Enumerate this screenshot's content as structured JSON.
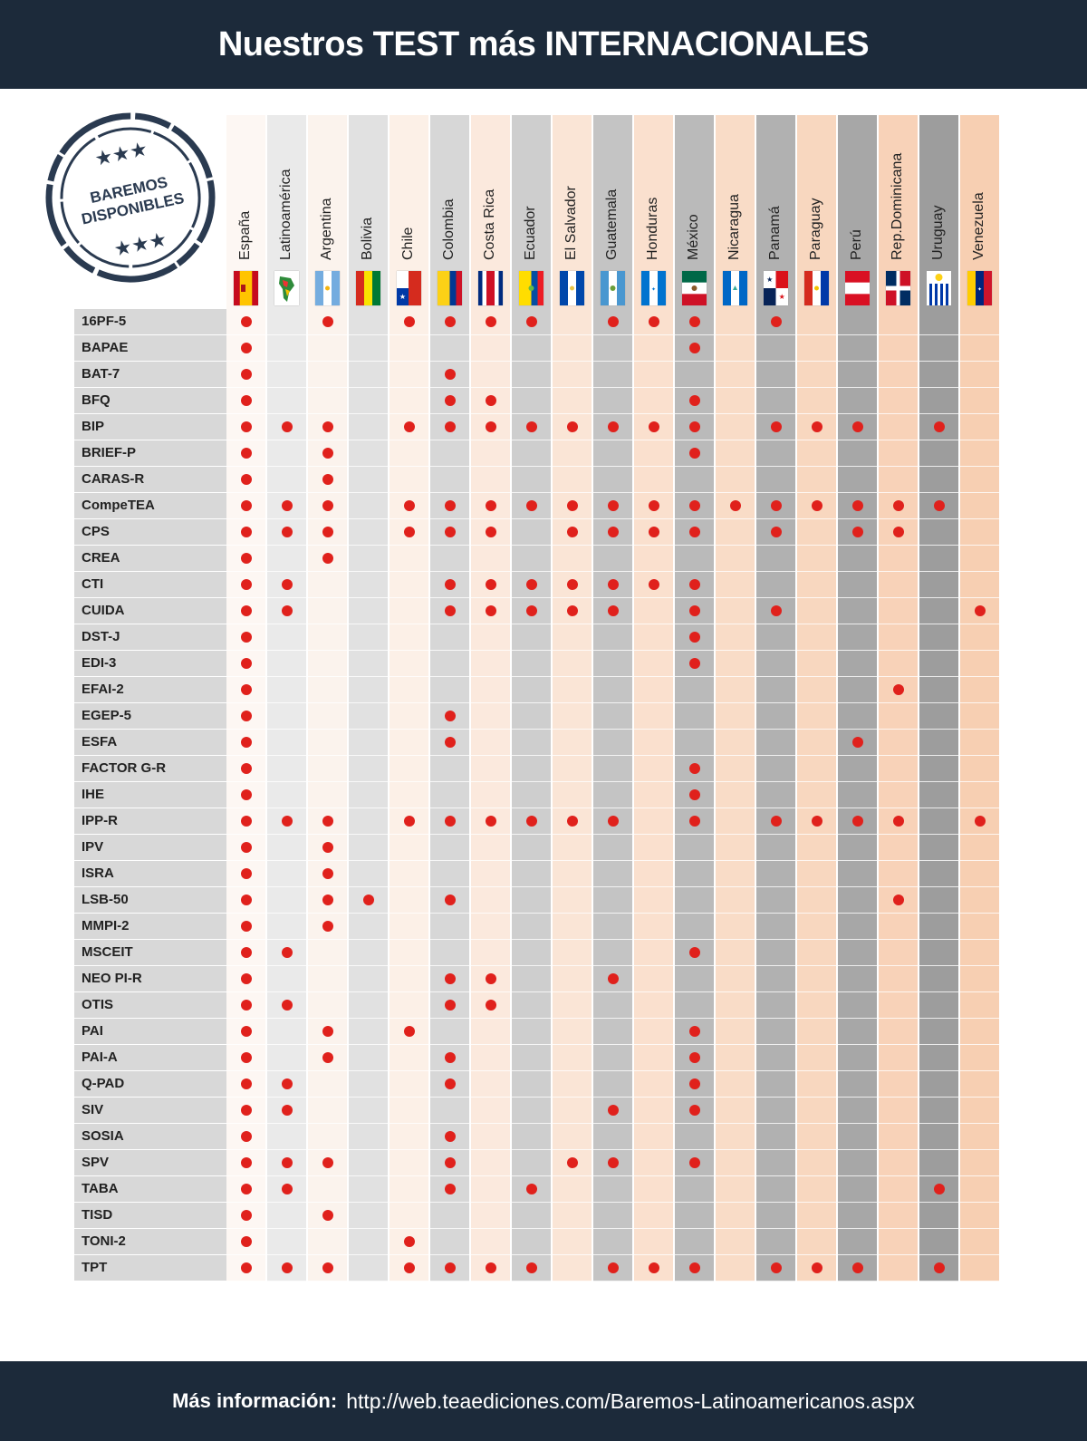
{
  "header": {
    "title": "Nuestros TEST más INTERNACIONALES"
  },
  "stamp": {
    "line1": "BAREMOS",
    "line2": "DISPONIBLES"
  },
  "countries": [
    "España",
    "Latinoamérica",
    "Argentina",
    "Bolivia",
    "Chile",
    "Colombia",
    "Costa Rica",
    "Ecuador",
    "El Salvador",
    "Guatemala",
    "Honduras",
    "México",
    "Nicaragua",
    "Panamá",
    "Paraguay",
    "Perú",
    "Rep.Dominicana",
    "Uruguay",
    "Venezuela"
  ],
  "flag_icons": [
    "spain-flag-icon",
    "latin-america-map-icon",
    "argentina-flag-icon",
    "bolivia-flag-icon",
    "chile-flag-icon",
    "colombia-flag-icon",
    "costa-rica-flag-icon",
    "ecuador-flag-icon",
    "el-salvador-flag-icon",
    "guatemala-flag-icon",
    "honduras-flag-icon",
    "mexico-flag-icon",
    "nicaragua-flag-icon",
    "panama-flag-icon",
    "paraguay-flag-icon",
    "peru-flag-icon",
    "dominican-republic-flag-icon",
    "uruguay-flag-icon",
    "venezuela-flag-icon"
  ],
  "colors": {
    "header_bg": "#1c2a3a",
    "dot": "#e0211c",
    "label_bg": "#d8d8d8",
    "column_palette": [
      "#fdf7f3",
      "#eaeaea",
      "#fbf3ed",
      "#e1e1e1",
      "#fcf0e7",
      "#d7d7d7",
      "#fbe9dd",
      "#cecece",
      "#fae5d6",
      "#c4c4c4",
      "#fae0ce",
      "#bababa",
      "#f9dcc7",
      "#b1b1b1",
      "#f8d7bf",
      "#a7a7a7",
      "#f8d2b8",
      "#9d9d9d",
      "#f7cfb2"
    ]
  },
  "tests": [
    {
      "name": "16PF-5",
      "countries": [
        "España",
        "Argentina",
        "Chile",
        "Colombia",
        "Costa Rica",
        "Ecuador",
        "Guatemala",
        "Honduras",
        "México",
        "Panamá"
      ]
    },
    {
      "name": "BAPAE",
      "countries": [
        "España",
        "México"
      ]
    },
    {
      "name": "BAT-7",
      "countries": [
        "España",
        "Colombia"
      ]
    },
    {
      "name": "BFQ",
      "countries": [
        "España",
        "Colombia",
        "Costa Rica",
        "México"
      ]
    },
    {
      "name": "BIP",
      "countries": [
        "España",
        "Latinoamérica",
        "Argentina",
        "Chile",
        "Colombia",
        "Costa Rica",
        "Ecuador",
        "El Salvador",
        "Guatemala",
        "Honduras",
        "México",
        "Panamá",
        "Paraguay",
        "Perú",
        "Uruguay"
      ]
    },
    {
      "name": "BRIEF-P",
      "countries": [
        "España",
        "Argentina",
        "México"
      ]
    },
    {
      "name": "CARAS-R",
      "countries": [
        "España",
        "Argentina"
      ]
    },
    {
      "name": "CompeTEA",
      "countries": [
        "España",
        "Latinoamérica",
        "Argentina",
        "Chile",
        "Colombia",
        "Costa Rica",
        "Ecuador",
        "El Salvador",
        "Guatemala",
        "Honduras",
        "México",
        "Nicaragua",
        "Panamá",
        "Paraguay",
        "Perú",
        "Rep.Dominicana",
        "Uruguay"
      ]
    },
    {
      "name": "CPS",
      "countries": [
        "España",
        "Latinoamérica",
        "Argentina",
        "Chile",
        "Colombia",
        "Costa Rica",
        "El Salvador",
        "Guatemala",
        "Honduras",
        "México",
        "Panamá",
        "Perú",
        "Rep.Dominicana"
      ]
    },
    {
      "name": "CREA",
      "countries": [
        "España",
        "Argentina"
      ]
    },
    {
      "name": "CTI",
      "countries": [
        "España",
        "Latinoamérica",
        "Colombia",
        "Costa Rica",
        "Ecuador",
        "El Salvador",
        "Guatemala",
        "Honduras",
        "México"
      ]
    },
    {
      "name": "CUIDA",
      "countries": [
        "España",
        "Latinoamérica",
        "Colombia",
        "Costa Rica",
        "Ecuador",
        "El Salvador",
        "Guatemala",
        "México",
        "Panamá",
        "Venezuela"
      ]
    },
    {
      "name": "DST-J",
      "countries": [
        "España",
        "México"
      ]
    },
    {
      "name": "EDI-3",
      "countries": [
        "España",
        "México"
      ]
    },
    {
      "name": "EFAI-2",
      "countries": [
        "España",
        "Rep.Dominicana"
      ]
    },
    {
      "name": "EGEP-5",
      "countries": [
        "España",
        "Colombia"
      ]
    },
    {
      "name": "ESFA",
      "countries": [
        "España",
        "Colombia",
        "Perú"
      ]
    },
    {
      "name": "FACTOR G-R",
      "countries": [
        "España",
        "México"
      ]
    },
    {
      "name": "IHE",
      "countries": [
        "España",
        "México"
      ]
    },
    {
      "name": "IPP-R",
      "countries": [
        "España",
        "Latinoamérica",
        "Argentina",
        "Chile",
        "Colombia",
        "Costa Rica",
        "Ecuador",
        "El Salvador",
        "Guatemala",
        "México",
        "Panamá",
        "Paraguay",
        "Perú",
        "Rep.Dominicana",
        "Venezuela"
      ]
    },
    {
      "name": "IPV",
      "countries": [
        "España",
        "Argentina"
      ]
    },
    {
      "name": "ISRA",
      "countries": [
        "España",
        "Argentina"
      ]
    },
    {
      "name": "LSB-50",
      "countries": [
        "España",
        "Argentina",
        "Bolivia",
        "Colombia",
        "Rep.Dominicana"
      ]
    },
    {
      "name": "MMPI-2",
      "countries": [
        "España",
        "Argentina"
      ]
    },
    {
      "name": "MSCEIT",
      "countries": [
        "España",
        "Latinoamérica",
        "México"
      ]
    },
    {
      "name": "NEO PI-R",
      "countries": [
        "España",
        "Colombia",
        "Costa Rica",
        "Guatemala"
      ]
    },
    {
      "name": "OTIS",
      "countries": [
        "España",
        "Latinoamérica",
        "Colombia",
        "Costa Rica"
      ]
    },
    {
      "name": "PAI",
      "countries": [
        "España",
        "Argentina",
        "Chile",
        "México"
      ]
    },
    {
      "name": "PAI-A",
      "countries": [
        "España",
        "Argentina",
        "Colombia",
        "México"
      ]
    },
    {
      "name": "Q-PAD",
      "countries": [
        "España",
        "Latinoamérica",
        "Colombia",
        "México"
      ]
    },
    {
      "name": "SIV",
      "countries": [
        "España",
        "Latinoamérica",
        "Guatemala",
        "México"
      ]
    },
    {
      "name": "SOSIA",
      "countries": [
        "España",
        "Colombia"
      ]
    },
    {
      "name": "SPV",
      "countries": [
        "España",
        "Latinoamérica",
        "Argentina",
        "Colombia",
        "El Salvador",
        "Guatemala",
        "México"
      ]
    },
    {
      "name": "TABA",
      "countries": [
        "España",
        "Latinoamérica",
        "Colombia",
        "Ecuador",
        "Uruguay"
      ]
    },
    {
      "name": "TISD",
      "countries": [
        "España",
        "Argentina"
      ]
    },
    {
      "name": "TONI-2",
      "countries": [
        "España",
        "Chile"
      ]
    },
    {
      "name": "TPT",
      "countries": [
        "España",
        "Latinoamérica",
        "Argentina",
        "Chile",
        "Colombia",
        "Costa Rica",
        "Ecuador",
        "Guatemala",
        "Honduras",
        "México",
        "Panamá",
        "Paraguay",
        "Perú",
        "Uruguay"
      ]
    }
  ],
  "footer": {
    "label": "Más información:",
    "url": "http://web.teaediciones.com/Baremos-Latinoamericanos.aspx"
  }
}
